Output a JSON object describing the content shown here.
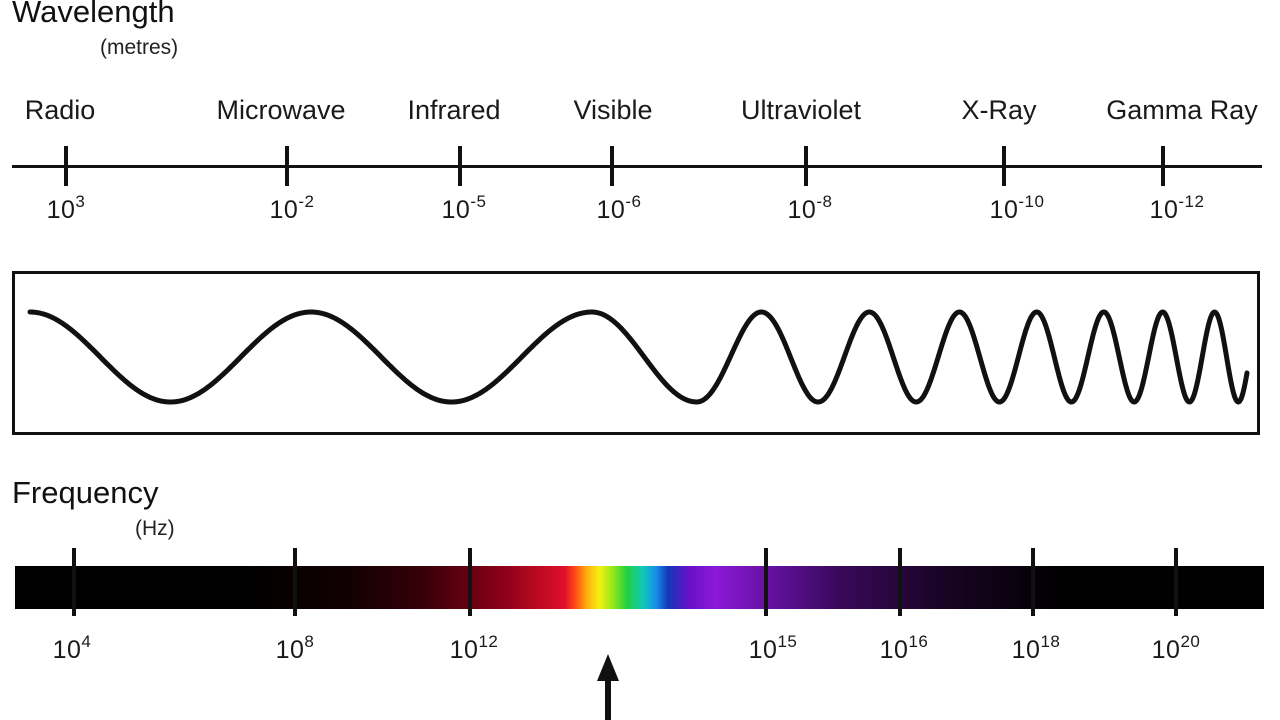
{
  "wavelength": {
    "title": "Wavelength",
    "unit": "(metres)",
    "bands": [
      {
        "name": "Radio",
        "base": "10",
        "exp": "3"
      },
      {
        "name": "Microwave",
        "base": "10",
        "exp": "-2"
      },
      {
        "name": "Infrared",
        "base": "10",
        "exp": "-5"
      },
      {
        "name": "Visible",
        "base": "10",
        "exp": "-6"
      },
      {
        "name": "Ultraviolet",
        "base": "10",
        "exp": "-8"
      },
      {
        "name": "X-Ray",
        "base": "10",
        "exp": "-10"
      },
      {
        "name": "Gamma Ray",
        "base": "10",
        "exp": "-12"
      }
    ]
  },
  "frequency": {
    "title": "Frequency",
    "unit": "(Hz)",
    "ticks": [
      {
        "base": "10",
        "exp": "4"
      },
      {
        "base": "10",
        "exp": "8"
      },
      {
        "base": "10",
        "exp": "12"
      },
      {
        "base": "10",
        "exp": "15"
      },
      {
        "base": "10",
        "exp": "16"
      },
      {
        "base": "10",
        "exp": "18"
      },
      {
        "base": "10",
        "exp": "20"
      }
    ]
  },
  "colors": {
    "ink": "#111111",
    "background": "#ffffff"
  }
}
